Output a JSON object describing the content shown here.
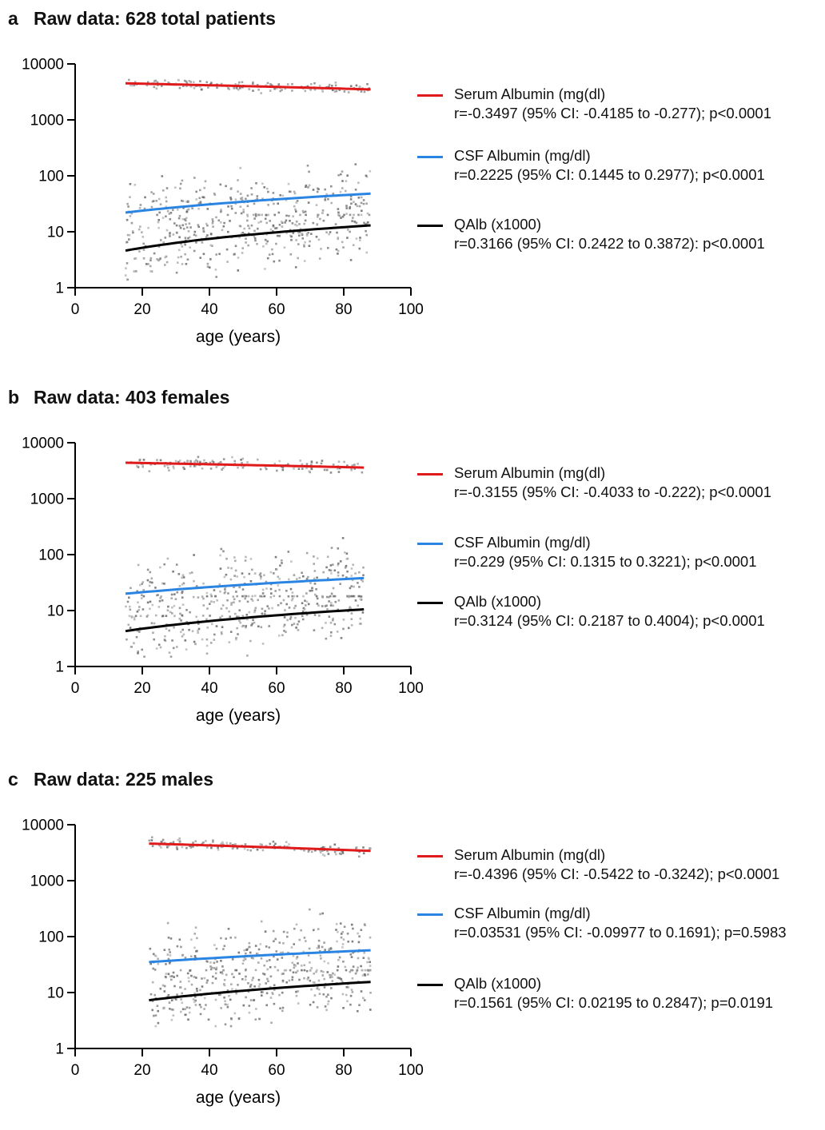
{
  "colors": {
    "serum": "#e0191b",
    "csf": "#2a84e2",
    "qalb": "#000000",
    "points": "#8a8a8a",
    "axis": "#000000"
  },
  "chart_data": [
    {
      "letter": "a",
      "title": "Raw data: 628 total patients",
      "type": "scatter",
      "xlabel": "age (years)",
      "ylabel": "",
      "xlim": [
        0,
        100
      ],
      "ylim": [
        1,
        10000
      ],
      "yscale": "log",
      "xticks": [
        "0",
        "20",
        "40",
        "60",
        "80",
        "100"
      ],
      "yticks": [
        "1",
        "10",
        "100",
        "1000",
        "10000"
      ],
      "grid": false,
      "legend_position": "right",
      "series": [
        {
          "name": "Serum Albumin (mg(dl)",
          "stats": "r=-0.3497 (95% CI: -0.4185 to -0.277); p<0.0001",
          "fit_x": [
            15,
            88
          ],
          "fit_y": [
            4500,
            3500
          ],
          "scatter_x_range": [
            15,
            88
          ],
          "scatter_y_range": [
            3000,
            6000
          ]
        },
        {
          "name": "CSF Albumin (mg/dl)",
          "stats": "r=0.2225 (95% CI: 0.1445 to 0.2977); p<0.0001",
          "fit_x": [
            15,
            88
          ],
          "fit_y": [
            22,
            48
          ],
          "scatter_x_range": [
            15,
            88
          ],
          "scatter_y_range": [
            8,
            400
          ]
        },
        {
          "name": "QAlb (x1000)",
          "stats": "r=0.3166 (95% CI: 0.2422 to 0.3872): p<0.0001",
          "fit_x": [
            15,
            88
          ],
          "fit_y": [
            4.6,
            13
          ],
          "scatter_x_range": [
            15,
            88
          ],
          "scatter_y_range": [
            1.4,
            20
          ]
        }
      ]
    },
    {
      "letter": "b",
      "title": "Raw data: 403 females",
      "type": "scatter",
      "xlabel": "age (years)",
      "ylabel": "",
      "xlim": [
        0,
        100
      ],
      "ylim": [
        1,
        10000
      ],
      "yscale": "log",
      "xticks": [
        "0",
        "20",
        "40",
        "60",
        "80",
        "100"
      ],
      "yticks": [
        "1",
        "10",
        "100",
        "1000",
        "10000"
      ],
      "grid": false,
      "legend_position": "right",
      "series": [
        {
          "name": "Serum Albumin (mg(dl)",
          "stats": "r=-0.3155 (95% CI: -0.4033 to -0.222); p<0.0001",
          "fit_x": [
            15,
            86
          ],
          "fit_y": [
            4400,
            3600
          ],
          "scatter_x_range": [
            15,
            86
          ],
          "scatter_y_range": [
            2800,
            5800
          ]
        },
        {
          "name": "CSF Albumin (mg/dl)",
          "stats": "r=0.229 (95% CI: 0.1315 to 0.3221); p<0.0001",
          "fit_x": [
            15,
            86
          ],
          "fit_y": [
            20,
            38
          ],
          "scatter_x_range": [
            15,
            86
          ],
          "scatter_y_range": [
            8,
            280
          ]
        },
        {
          "name": "QAlb (x1000)",
          "stats": "r=0.3124 (95% CI: 0.2187 to 0.4004); p<0.0001",
          "fit_x": [
            15,
            86
          ],
          "fit_y": [
            4.3,
            10.5
          ],
          "scatter_x_range": [
            15,
            86
          ],
          "scatter_y_range": [
            1.5,
            18
          ]
        }
      ]
    },
    {
      "letter": "c",
      "title": "Raw data: 225 males",
      "type": "scatter",
      "xlabel": "age (years)",
      "ylabel": "",
      "xlim": [
        0,
        100
      ],
      "ylim": [
        1,
        10000
      ],
      "yscale": "log",
      "xticks": [
        "0",
        "20",
        "40",
        "60",
        "80",
        "100"
      ],
      "yticks": [
        "1",
        "10",
        "100",
        "1000",
        "10000"
      ],
      "grid": false,
      "legend_position": "right",
      "series": [
        {
          "name": "Serum Albumin (mg(dl)",
          "stats": "r=-0.4396 (95% CI: -0.5422 to -0.3242); p<0.0001",
          "fit_x": [
            22,
            88
          ],
          "fit_y": [
            4600,
            3400
          ],
          "scatter_x_range": [
            22,
            88
          ],
          "scatter_y_range": [
            2700,
            6000
          ]
        },
        {
          "name": "CSF Albumin (mg/dl)",
          "stats": "r=0.03531 (95% CI: -0.09977 to 0.1691); p=0.5983",
          "fit_x": [
            22,
            88
          ],
          "fit_y": [
            35,
            57
          ],
          "scatter_x_range": [
            22,
            88
          ],
          "scatter_y_range": [
            9,
            400
          ]
        },
        {
          "name": "QAlb (x1000)",
          "stats": "r=0.1561 (95% CI: 0.02195 to 0.2847); p=0.0191",
          "fit_x": [
            22,
            88
          ],
          "fit_y": [
            7.3,
            15.5
          ],
          "scatter_x_range": [
            22,
            88
          ],
          "scatter_y_range": [
            2.5,
            25
          ]
        }
      ]
    }
  ]
}
